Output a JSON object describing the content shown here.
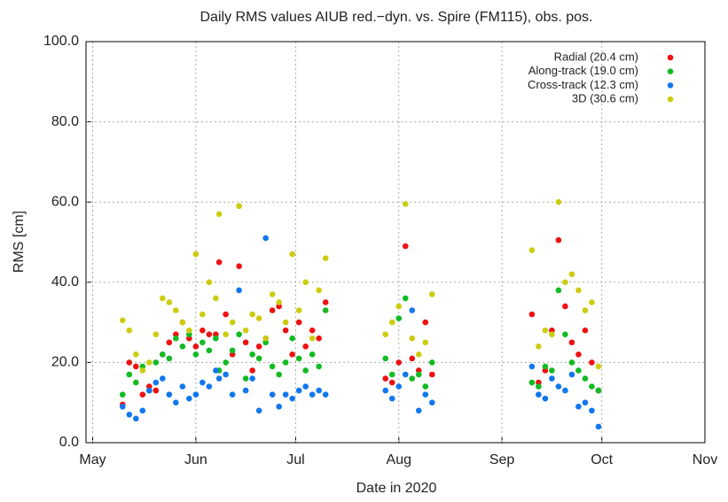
{
  "chart_data": {
    "type": "scatter",
    "title": "Daily RMS values AIUB red.−dyn. vs. Spire (FM115), obs. pos.",
    "x_label": "Date in 2020",
    "y_label": "RMS [cm]",
    "x": [
      131,
      133,
      135,
      137,
      139,
      141,
      143,
      145,
      147,
      149,
      151,
      153,
      155,
      157,
      159,
      160,
      162,
      164,
      166,
      168,
      170,
      172,
      174,
      176,
      178,
      180,
      182,
      184,
      186,
      188,
      190,
      192,
      210,
      212,
      214,
      216,
      218,
      220,
      222,
      224,
      254,
      256,
      258,
      260,
      262,
      264,
      266,
      268,
      270,
      272,
      274
    ],
    "series": [
      {
        "name": "Radial (20.4 cm)",
        "color": "#ee1111",
        "values": [
          9.5,
          20,
          19,
          12,
          14,
          13,
          22,
          25,
          27,
          30,
          26,
          24,
          28,
          27,
          27,
          45,
          32,
          22,
          44,
          25,
          18,
          24,
          26,
          33,
          34,
          28,
          22,
          30,
          24,
          28,
          26,
          35,
          16,
          15,
          20,
          49,
          21,
          18,
          30,
          17,
          32,
          15,
          18,
          28,
          50.5,
          34,
          25,
          22,
          28,
          20,
          13
        ]
      },
      {
        "name": "Along-track (19.0 cm)",
        "color": "#11bb22",
        "values": [
          12,
          17,
          15,
          19,
          13,
          20,
          22,
          21,
          26,
          24,
          27,
          22,
          25,
          23,
          26,
          18,
          20,
          23,
          27,
          16,
          22,
          21,
          25,
          19,
          17,
          20,
          26,
          21,
          18,
          22,
          19,
          33,
          21,
          17,
          31,
          36,
          16,
          17,
          14,
          20,
          15,
          14,
          19,
          18,
          38,
          27,
          20,
          18,
          16,
          14,
          13
        ]
      },
      {
        "name": "Cross-track (12.3 cm)",
        "color": "#1177ee",
        "values": [
          9,
          7,
          6,
          8,
          13,
          15,
          16,
          12,
          10,
          14,
          11,
          12,
          15,
          14,
          18,
          16,
          17,
          12,
          38,
          13,
          16,
          8,
          51,
          12,
          9,
          12,
          11,
          13,
          14,
          12,
          13,
          12,
          13,
          11,
          14,
          17,
          33,
          8,
          12,
          10,
          19,
          12,
          11,
          16,
          14,
          13,
          17,
          9,
          10,
          8,
          4
        ]
      },
      {
        "name": "3D (30.6 cm)",
        "color": "#cccc11",
        "values": [
          30.5,
          28,
          22,
          18,
          20,
          27,
          36,
          35,
          33,
          30,
          28,
          47,
          32,
          40,
          36,
          57,
          27,
          30,
          59,
          28,
          32,
          31,
          26,
          37,
          35,
          30,
          47,
          33,
          40,
          26,
          38,
          46,
          27,
          30,
          34,
          59.5,
          26,
          22,
          25,
          37,
          48,
          24,
          28,
          27,
          60,
          40,
          42,
          38,
          33,
          35,
          19
        ]
      }
    ],
    "xlim": [
      120,
      306
    ],
    "xticks": [
      {
        "value": 122,
        "label": "May"
      },
      {
        "value": 153,
        "label": "Jun"
      },
      {
        "value": 183,
        "label": "Jul"
      },
      {
        "value": 214,
        "label": "Aug"
      },
      {
        "value": 245,
        "label": "Sep"
      },
      {
        "value": 275,
        "label": "Oct"
      },
      {
        "value": 306,
        "label": "Nov"
      }
    ],
    "ylim": [
      0,
      100
    ],
    "yticks": [
      {
        "value": 0,
        "label": "0.0"
      },
      {
        "value": 20,
        "label": "20.0"
      },
      {
        "value": 40,
        "label": "40.0"
      },
      {
        "value": 60,
        "label": "60.0"
      },
      {
        "value": 80,
        "label": "80.0"
      },
      {
        "value": 100,
        "label": "100.0"
      }
    ],
    "grid": true,
    "legend": "top-right"
  }
}
